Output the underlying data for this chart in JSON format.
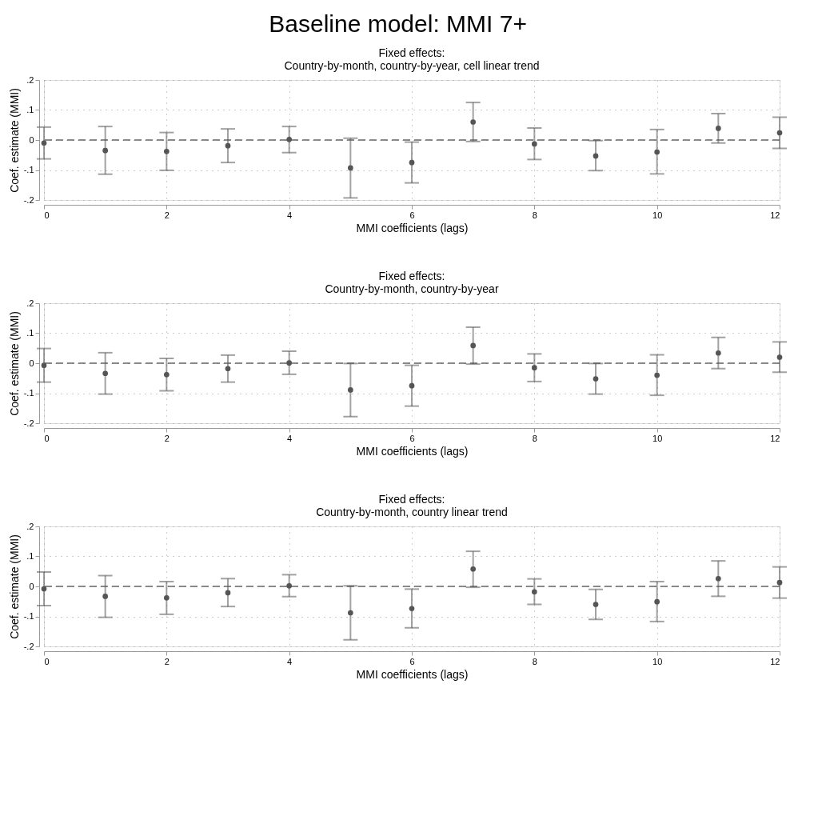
{
  "chart_data": [
    {
      "type": "scatter",
      "title": "Fixed effects:\nCountry-by-month, country-by-year, cell linear trend",
      "annotations": [
        "Baseline model: MMI 7+"
      ],
      "xlabel": "MMI coefficients (lags)",
      "ylabel": "Coef. estimate (MMI)",
      "x": [
        0,
        1,
        2,
        3,
        4,
        5,
        6,
        7,
        8,
        9,
        10,
        11,
        12
      ],
      "series": [
        {
          "color": "#555555",
          "values": [
            -0.01,
            -0.035,
            -0.038,
            -0.019,
            0.002,
            -0.093,
            -0.075,
            0.06,
            -0.013,
            -0.053,
            -0.04,
            0.039,
            0.024
          ],
          "errors": [
            [
              -0.063,
              0.043
            ],
            [
              -0.114,
              0.045
            ],
            [
              -0.101,
              0.025
            ],
            [
              -0.075,
              0.037
            ],
            [
              -0.042,
              0.045
            ],
            [
              -0.193,
              0.006
            ],
            [
              -0.143,
              -0.007
            ],
            [
              -0.005,
              0.125
            ],
            [
              -0.065,
              0.04
            ],
            [
              -0.102,
              -0.002
            ],
            [
              -0.113,
              0.035
            ],
            [
              -0.01,
              0.088
            ],
            [
              -0.028,
              0.076
            ]
          ]
        }
      ],
      "xlim": [
        0,
        12
      ],
      "xticks": [
        0,
        2,
        4,
        6,
        8,
        10,
        12
      ],
      "ylim": [
        -0.2,
        0.2
      ],
      "yticks": [
        {
          "value": -0.2,
          "label": "-.2"
        },
        {
          "value": -0.1,
          "label": "-.1"
        },
        0,
        {
          "value": 0.1,
          "label": ".1"
        },
        {
          "value": 0.2,
          "label": ".2"
        }
      ],
      "ref_lines": [
        {
          "axis": "y",
          "value": 0,
          "line_style": "dashed",
          "color": "#666666"
        }
      ],
      "grid": true,
      "marker": "circle"
    },
    {
      "type": "scatter",
      "title": "Fixed effects:\nCountry-by-month, country-by-year",
      "xlabel": "MMI coefficients (lags)",
      "ylabel": "Coef. estimate (MMI)",
      "x": [
        0,
        1,
        2,
        3,
        4,
        5,
        6,
        7,
        8,
        9,
        10,
        11,
        12
      ],
      "series": [
        {
          "color": "#555555",
          "values": [
            -0.007,
            -0.034,
            -0.038,
            -0.018,
            0.001,
            -0.089,
            -0.075,
            0.059,
            -0.015,
            -0.052,
            -0.04,
            0.034,
            0.02
          ],
          "errors": [
            [
              -0.063,
              0.049
            ],
            [
              -0.103,
              0.035
            ],
            [
              -0.092,
              0.016
            ],
            [
              -0.063,
              0.027
            ],
            [
              -0.037,
              0.04
            ],
            [
              -0.178,
              -0.001
            ],
            [
              -0.143,
              -0.007
            ],
            [
              -0.003,
              0.12
            ],
            [
              -0.061,
              0.031
            ],
            [
              -0.103,
              -0.001
            ],
            [
              -0.107,
              0.028
            ],
            [
              -0.018,
              0.086
            ],
            [
              -0.03,
              0.071
            ]
          ]
        }
      ],
      "xlim": [
        0,
        12
      ],
      "xticks": [
        0,
        2,
        4,
        6,
        8,
        10,
        12
      ],
      "ylim": [
        -0.2,
        0.2
      ],
      "yticks": [
        {
          "value": -0.2,
          "label": "-.2"
        },
        {
          "value": -0.1,
          "label": "-.1"
        },
        0,
        {
          "value": 0.1,
          "label": ".1"
        },
        {
          "value": 0.2,
          "label": ".2"
        }
      ],
      "ref_lines": [
        {
          "axis": "y",
          "value": 0,
          "line_style": "dashed",
          "color": "#666666"
        }
      ],
      "grid": true,
      "marker": "circle"
    },
    {
      "type": "scatter",
      "title": "Fixed effects:\nCountry-by-month, country linear trend",
      "xlabel": "MMI coefficients (lags)",
      "ylabel": "Coef. estimate (MMI)",
      "x": [
        0,
        1,
        2,
        3,
        4,
        5,
        6,
        7,
        8,
        9,
        10,
        11,
        12
      ],
      "series": [
        {
          "color": "#555555",
          "values": [
            -0.008,
            -0.033,
            -0.038,
            -0.021,
            0.002,
            -0.088,
            -0.074,
            0.058,
            -0.018,
            -0.06,
            -0.051,
            0.026,
            0.013
          ],
          "errors": [
            [
              -0.064,
              0.048
            ],
            [
              -0.103,
              0.036
            ],
            [
              -0.093,
              0.016
            ],
            [
              -0.067,
              0.026
            ],
            [
              -0.034,
              0.039
            ],
            [
              -0.178,
              0.002
            ],
            [
              -0.138,
              -0.009
            ],
            [
              -0.003,
              0.117
            ],
            [
              -0.06,
              0.025
            ],
            [
              -0.11,
              -0.01
            ],
            [
              -0.117,
              0.016
            ],
            [
              -0.033,
              0.085
            ],
            [
              -0.039,
              0.065
            ]
          ]
        }
      ],
      "xlim": [
        0,
        12
      ],
      "xticks": [
        0,
        2,
        4,
        6,
        8,
        10,
        12
      ],
      "ylim": [
        -0.2,
        0.2
      ],
      "yticks": [
        {
          "value": -0.2,
          "label": "-.2"
        },
        {
          "value": -0.1,
          "label": "-.1"
        },
        0,
        {
          "value": 0.1,
          "label": ".1"
        },
        {
          "value": 0.2,
          "label": ".2"
        }
      ],
      "ref_lines": [
        {
          "axis": "y",
          "value": 0,
          "line_style": "dashed",
          "color": "#666666"
        }
      ],
      "grid": true,
      "marker": "circle"
    }
  ]
}
